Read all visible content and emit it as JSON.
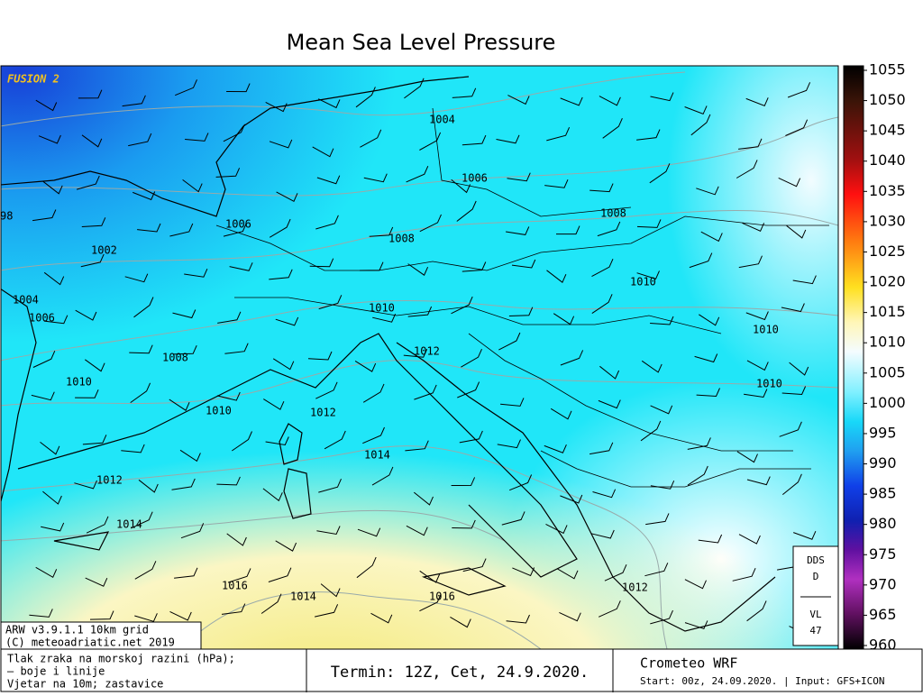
{
  "title": "Mean Sea Level Pressure",
  "brand": "FUSION 2",
  "isobar_labels": [
    "1004",
    "1006",
    "1008",
    "1006",
    "1008",
    "1002",
    "1010",
    "1004",
    "1006",
    "1010",
    "1010",
    "1012",
    "1008",
    "1010",
    "1010",
    "1010",
    "1012",
    "1014",
    "1012",
    "1014",
    "1016",
    "1014",
    "1016",
    "1012",
    "98"
  ],
  "colorbar": {
    "ticks": [
      1055,
      1050,
      1045,
      1040,
      1035,
      1030,
      1025,
      1020,
      1015,
      1010,
      1005,
      1000,
      995,
      990,
      985,
      980,
      975,
      970,
      965,
      960
    ]
  },
  "model_info": {
    "line1": "ARW v3.9.1.1 10km grid",
    "line2": "(C) meteoadriatic.net 2019"
  },
  "side_box": {
    "top1": "DDS",
    "top2": "D",
    "bottom1": "VL",
    "bottom2": "47"
  },
  "footer": {
    "left": [
      "Tlak zraka na morskoj razini (hPa);",
      "— boje i linije",
      "Vjetar na 10m; zastavice"
    ],
    "middle": "Termin: 12Z, Cet, 24.9.2020.",
    "right_title": "Crometeo WRF",
    "right_sub": "Start: 00z, 24.09.2020. | Input: GFS+ICON"
  }
}
